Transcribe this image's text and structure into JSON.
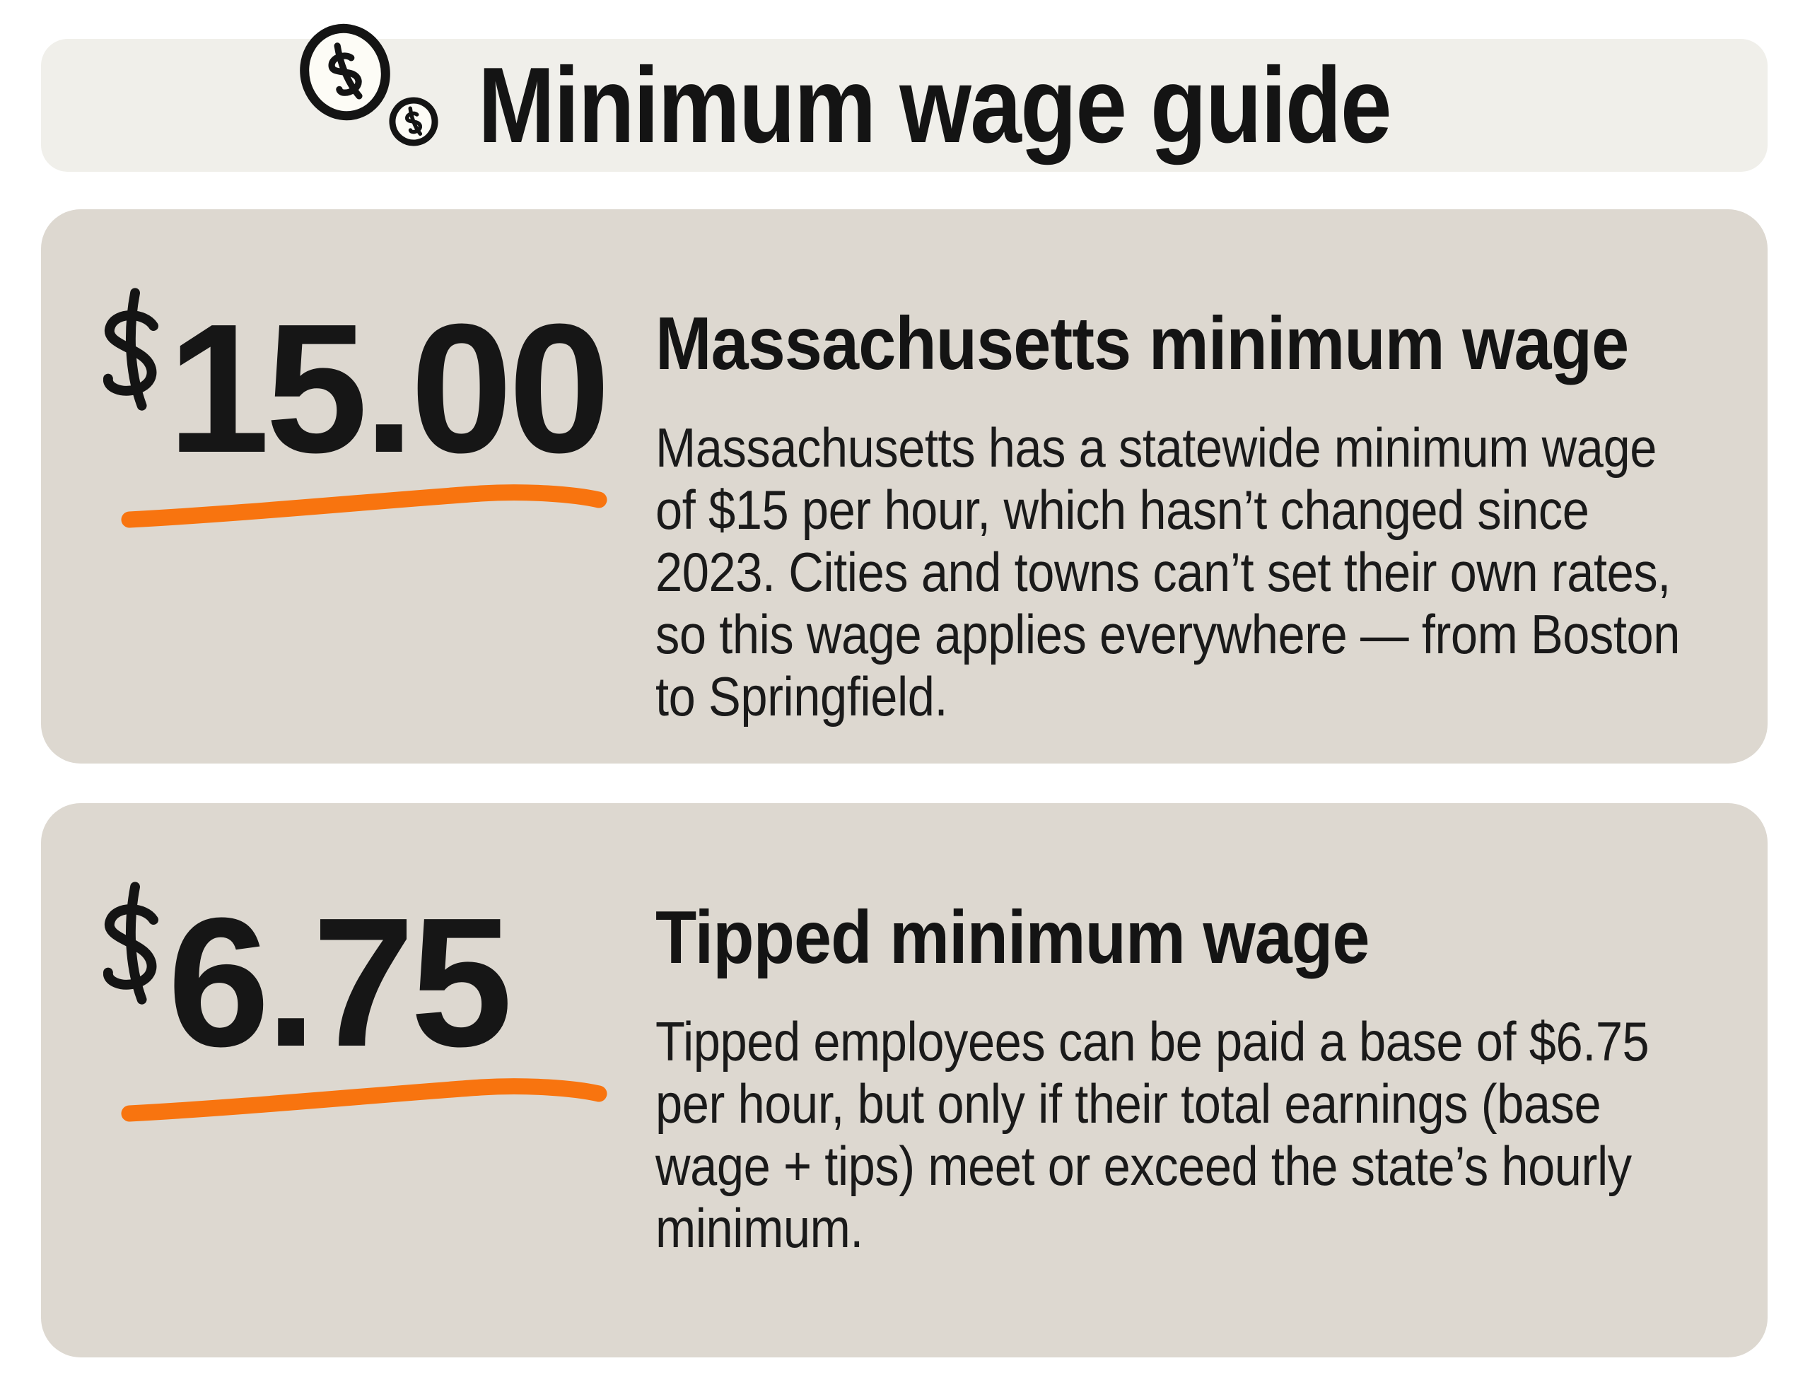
{
  "header": {
    "title": "Minimum wage guide",
    "icon": "dollar-coins-icon"
  },
  "cards": [
    {
      "currency": "$",
      "amount": "15.00",
      "heading": "Massachusetts minimum wage",
      "body_lines": [
        "Massachusetts has a statewide minimum wage",
        "of $15 per hour, which hasn’t changed since",
        "2023. Cities and towns can’t set their own rates,",
        "so this wage applies everywhere — from Boston",
        "to Springfield."
      ]
    },
    {
      "currency": "$",
      "amount": "6.75",
      "heading": "Tipped minimum wage",
      "body_lines": [
        "Tipped employees can be paid a base of $6.75",
        "per hour, but only if their total earnings (base",
        "wage + tips) meet or exceed the state’s hourly",
        "minimum."
      ]
    }
  ],
  "colors": {
    "page_bg": "#ffffff",
    "header_bg": "#f0efea",
    "card_bg": "#ddd8d0",
    "text": "#151515",
    "underline_orange": "#f8740f"
  }
}
